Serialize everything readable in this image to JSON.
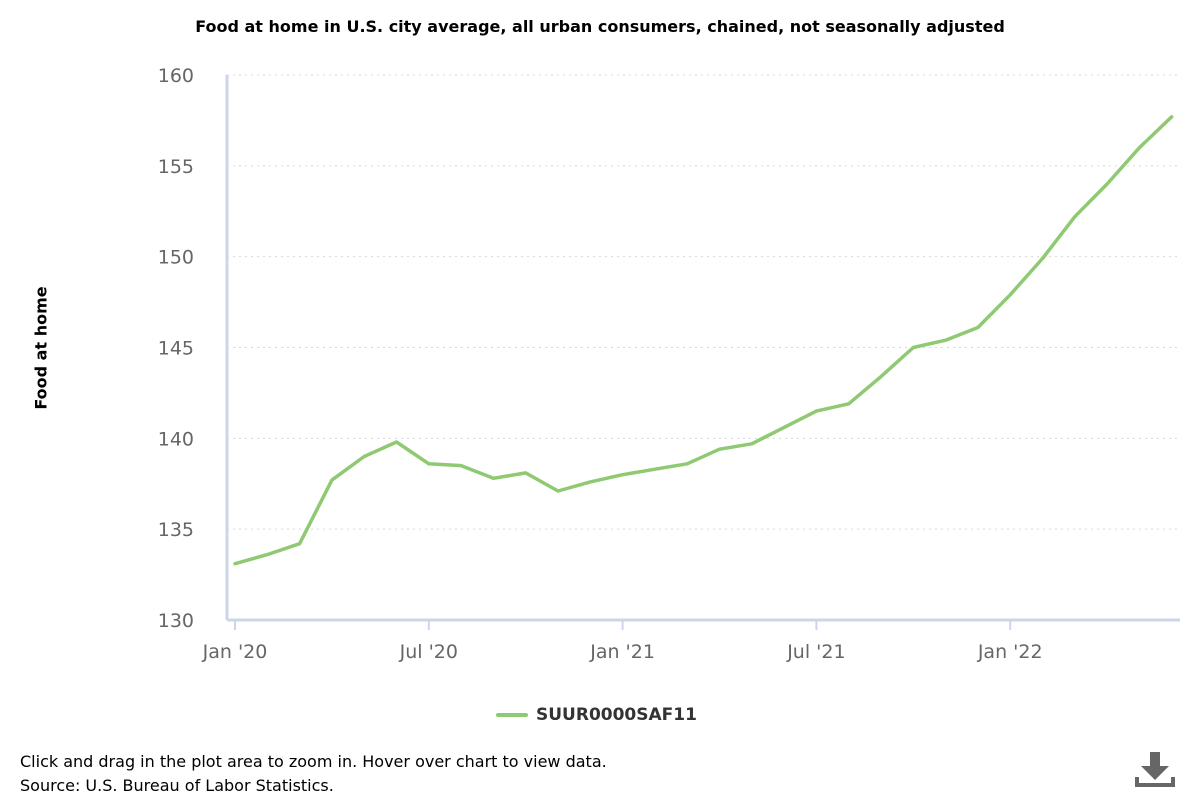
{
  "chart_data": {
    "type": "line",
    "title": "Food at home in U.S. city average, all urban consumers, chained, not seasonally adjusted",
    "ylabel": "Food at home",
    "xlabel": "",
    "ylim": [
      130,
      160
    ],
    "yticks": [
      130,
      135,
      140,
      145,
      150,
      155,
      160
    ],
    "xtick_labels": [
      "Jan '20",
      "Jul '20",
      "Jan '21",
      "Jul '21",
      "Jan '22"
    ],
    "grid": true,
    "legend_position": "bottom-center",
    "line_color": "#8fc971",
    "x": [
      "2020-01",
      "2020-02",
      "2020-03",
      "2020-04",
      "2020-05",
      "2020-06",
      "2020-07",
      "2020-08",
      "2020-09",
      "2020-10",
      "2020-11",
      "2020-12",
      "2021-01",
      "2021-02",
      "2021-03",
      "2021-04",
      "2021-05",
      "2021-06",
      "2021-07",
      "2021-08",
      "2021-09",
      "2021-10",
      "2021-11",
      "2021-12",
      "2022-01",
      "2022-02",
      "2022-03",
      "2022-04",
      "2022-05",
      "2022-06"
    ],
    "series": [
      {
        "name": "SUUR0000SAF11",
        "values": [
          133.1,
          133.6,
          134.2,
          137.7,
          139.0,
          139.8,
          138.6,
          138.5,
          137.8,
          138.1,
          137.1,
          137.6,
          138.0,
          138.3,
          138.6,
          139.4,
          139.7,
          140.6,
          141.5,
          141.9,
          143.4,
          145.0,
          145.4,
          146.1,
          147.9,
          149.9,
          152.2,
          154.0,
          156.0,
          157.7
        ]
      }
    ]
  },
  "footnote": {
    "line1": "Click and drag in the plot area to zoom in. Hover over chart to view data.",
    "line2": "Source: U.S. Bureau of Labor Statistics."
  },
  "icons": {
    "download": "download-icon"
  }
}
